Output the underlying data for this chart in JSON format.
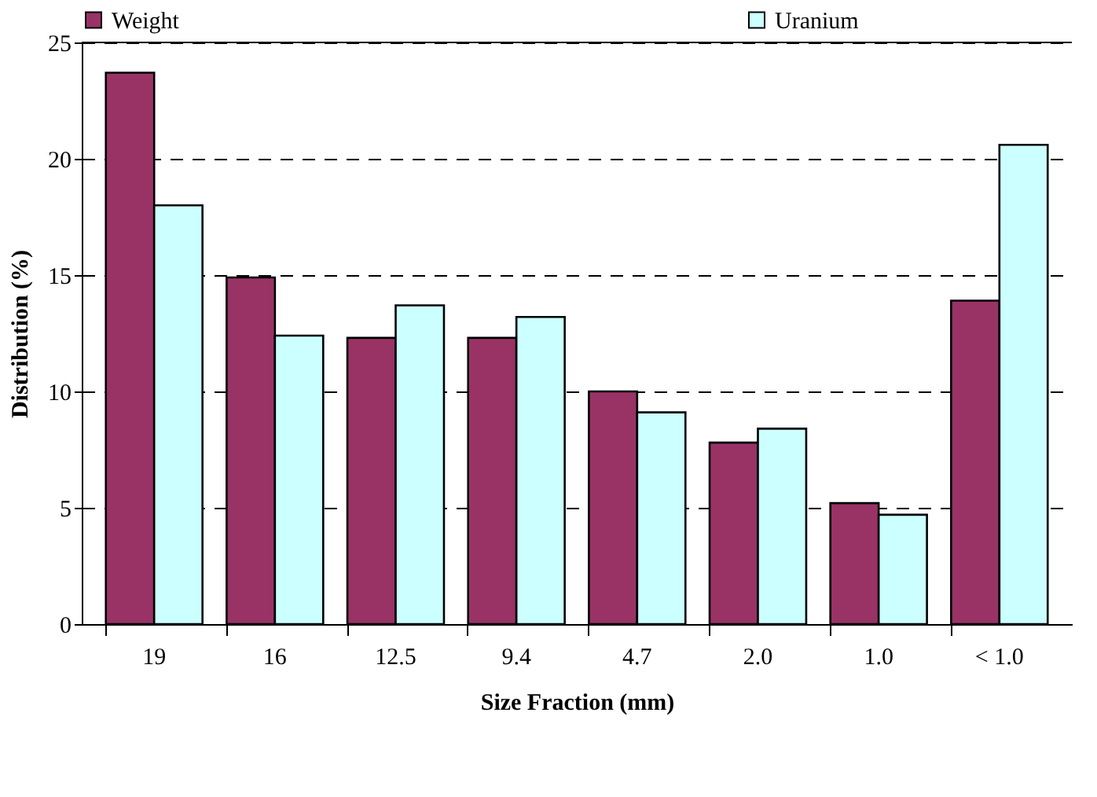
{
  "chart_data": {
    "type": "bar",
    "xlabel": "Size Fraction (mm)",
    "ylabel": "Distribution (%)",
    "categories": [
      "19",
      "16",
      "12.5",
      "9.4",
      "4.7",
      "2.0",
      "1.0",
      "< 1.0"
    ],
    "series": [
      {
        "name": "Weight",
        "color": "#993366",
        "values": [
          23.7,
          14.9,
          12.3,
          12.3,
          10.0,
          7.8,
          5.2,
          13.9
        ]
      },
      {
        "name": "Uranium",
        "color": "#ccffff",
        "values": [
          18.0,
          12.4,
          13.7,
          13.2,
          9.1,
          8.4,
          4.7,
          20.6
        ]
      }
    ],
    "ylim": [
      0,
      25
    ],
    "yticks": [
      0,
      5,
      10,
      15,
      20,
      25
    ],
    "grid": "y",
    "legend": "top"
  }
}
